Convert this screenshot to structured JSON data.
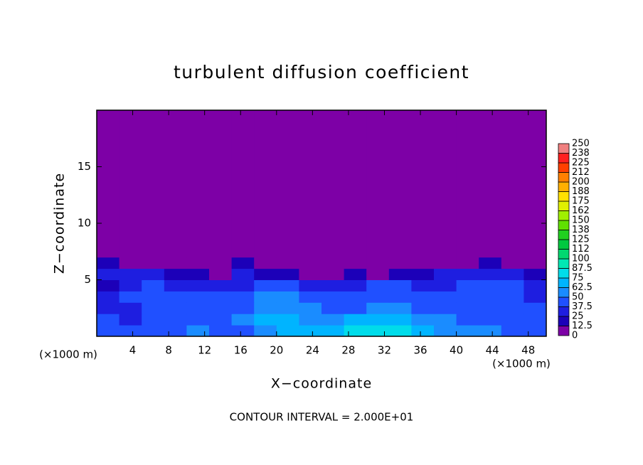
{
  "chart_data": {
    "type": "contour",
    "title": "turbulent diffusion coefficient",
    "xlabel": "X−coordinate",
    "ylabel": "Z−coordinate",
    "x_unit": "(×1000 m)",
    "x_unit_right": "(×1000 m)",
    "footnote": "CONTOUR INTERVAL = 2.000E+01",
    "xlim": [
      0,
      50
    ],
    "ylim": [
      0,
      20
    ],
    "xticks": [
      4,
      8,
      12,
      16,
      20,
      24,
      28,
      32,
      36,
      40,
      44,
      48
    ],
    "yticks": [
      5,
      10,
      15
    ],
    "field": {
      "x_edges": [
        0,
        2.5,
        5,
        7.5,
        10,
        12.5,
        15,
        17.5,
        20,
        22.5,
        25,
        27.5,
        30,
        32.5,
        35,
        37.5,
        40,
        42.5,
        45,
        47.5,
        50
      ],
      "z_edges": [
        0,
        1,
        2,
        3,
        4,
        5,
        6,
        7,
        20
      ],
      "values": [
        [
          45,
          40,
          38,
          45,
          50,
          48,
          45,
          60,
          65,
          70,
          72,
          78,
          80,
          75,
          70,
          60,
          55,
          50,
          48,
          45
        ],
        [
          40,
          35,
          40,
          45,
          48,
          45,
          50,
          70,
          68,
          55,
          60,
          65,
          70,
          72,
          55,
          50,
          48,
          45,
          40,
          42
        ],
        [
          30,
          35,
          40,
          42,
          45,
          40,
          45,
          60,
          55,
          50,
          48,
          45,
          55,
          50,
          45,
          42,
          40,
          45,
          38,
          40
        ],
        [
          25,
          40,
          42,
          40,
          45,
          38,
          40,
          55,
          50,
          42,
          40,
          38,
          45,
          48,
          40,
          38,
          42,
          45,
          40,
          35
        ],
        [
          20,
          35,
          40,
          35,
          30,
          30,
          35,
          45,
          40,
          30,
          25,
          30,
          40,
          45,
          35,
          35,
          40,
          42,
          38,
          30
        ],
        [
          30,
          25,
          30,
          20,
          15,
          10,
          25,
          20,
          15,
          10,
          12,
          15,
          10,
          15,
          20,
          25,
          30,
          30,
          25,
          20
        ],
        [
          20,
          10,
          5,
          0,
          0,
          0,
          15,
          0,
          0,
          0,
          0,
          0,
          0,
          0,
          0,
          0,
          10,
          15,
          10,
          5
        ],
        [
          0,
          0,
          0,
          0,
          0,
          0,
          0,
          0,
          0,
          0,
          0,
          0,
          0,
          0,
          0,
          0,
          0,
          0,
          0,
          0
        ]
      ]
    },
    "colorbar": {
      "levels": [
        0,
        12.5,
        25,
        37.5,
        50,
        62.5,
        75,
        87.5,
        100,
        {
          "value": 112.5,
          "label": "112"
        },
        125,
        {
          "value": 137.5,
          "label": "138"
        },
        150,
        {
          "value": 162.5,
          "label": "162"
        },
        175,
        {
          "value": 187.5,
          "label": "188"
        },
        200,
        {
          "value": 212.5,
          "label": "212"
        },
        225,
        {
          "value": 237.5,
          "label": "238"
        },
        250
      ],
      "colors": [
        "#7d00a6",
        "#1c00b8",
        "#1e1ee0",
        "#2050ff",
        "#1a8cff",
        "#00b4ff",
        "#00dcea",
        "#00e8b4",
        "#00d870",
        "#00c840",
        "#20d020",
        "#60e000",
        "#a0f000",
        "#e0f000",
        "#ffe000",
        "#ffb000",
        "#ff8000",
        "#ff4000",
        "#ff2020",
        "#f08080"
      ]
    }
  }
}
